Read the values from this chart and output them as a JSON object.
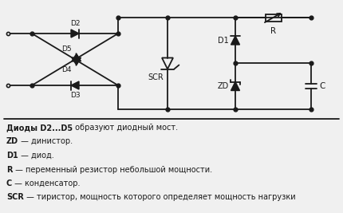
{
  "bg_color": "#f0f0f0",
  "line_color": "#1a1a1a",
  "text_color": "#1a1a1a",
  "legend_lines": [
    {
      "bold": "Диоды D2...D5",
      "normal": " образуют диодный мост."
    },
    {
      "bold": "ZD",
      "normal": " — динистор."
    },
    {
      "bold": "D1",
      "normal": " — диод."
    },
    {
      "bold": "R",
      "normal": " — переменный резистор небольшой мощности."
    },
    {
      "bold": "C",
      "normal": " — конденсатор."
    },
    {
      "bold": "SCR",
      "normal": " — тиристор, мощность которого определяет мощность нагрузки"
    }
  ]
}
